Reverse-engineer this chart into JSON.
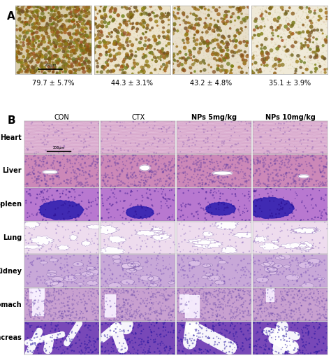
{
  "panel_a_label": "A",
  "panel_b_label": "B",
  "panel_a_values": [
    "79.7 ± 5.7%",
    "44.3 ± 3.1%",
    "43.2 ± 4.8%",
    "35.1 ± 3.9%"
  ],
  "panel_b_col_labels": [
    "CON",
    "CTX",
    "NPs 5mg/kg",
    "NPs 10mg/kg"
  ],
  "panel_b_row_labels": [
    "Heart",
    "Liver",
    "Spleen",
    "Lung",
    "Kidney",
    "Stomach",
    "Pancreas"
  ],
  "scale_bar_a": "200μm",
  "scale_bar_b": "200μm",
  "bg_color": "#ffffff",
  "panel_label_fontsize": 11,
  "col_label_fontsize": 7,
  "row_label_fontsize": 7,
  "value_fontsize": 7
}
